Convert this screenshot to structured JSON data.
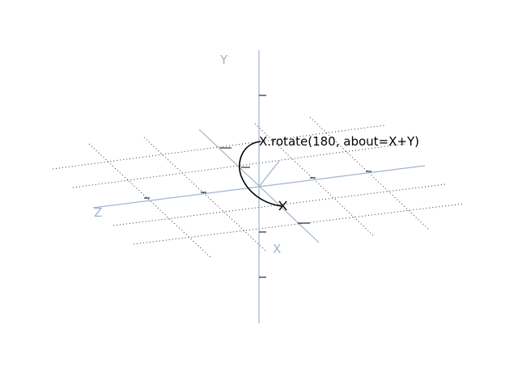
{
  "axes": {
    "x_label": "X",
    "y_label": "Y",
    "z_label": "Z",
    "color": "#9fb4cc"
  },
  "annotation": {
    "text": "X.rotate(180, about=X+Y)",
    "color": "#000000"
  },
  "rotation": {
    "angle_degrees": 180,
    "about": "X+Y",
    "marker": "x"
  }
}
